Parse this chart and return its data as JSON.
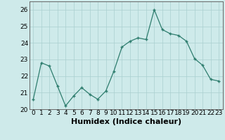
{
  "x": [
    0,
    1,
    2,
    3,
    4,
    5,
    6,
    7,
    8,
    9,
    10,
    11,
    12,
    13,
    14,
    15,
    16,
    17,
    18,
    19,
    20,
    21,
    22,
    23
  ],
  "y": [
    20.6,
    22.8,
    22.6,
    21.4,
    20.2,
    20.8,
    21.3,
    20.9,
    20.6,
    21.1,
    22.3,
    23.75,
    24.1,
    24.3,
    24.2,
    26.0,
    24.8,
    24.55,
    24.45,
    24.1,
    23.05,
    22.65,
    21.8,
    21.7
  ],
  "xlabel": "Humidex (Indice chaleur)",
  "ylim": [
    20,
    26.5
  ],
  "xlim": [
    -0.5,
    23.5
  ],
  "yticks": [
    20,
    21,
    22,
    23,
    24,
    25,
    26
  ],
  "xticks": [
    0,
    1,
    2,
    3,
    4,
    5,
    6,
    7,
    8,
    9,
    10,
    11,
    12,
    13,
    14,
    15,
    16,
    17,
    18,
    19,
    20,
    21,
    22,
    23
  ],
  "line_color": "#2e7d6e",
  "marker_color": "#2e7d6e",
  "bg_color": "#ceeaea",
  "grid_color": "#aacfcf",
  "tick_label_fontsize": 6.5,
  "xlabel_fontsize": 8
}
